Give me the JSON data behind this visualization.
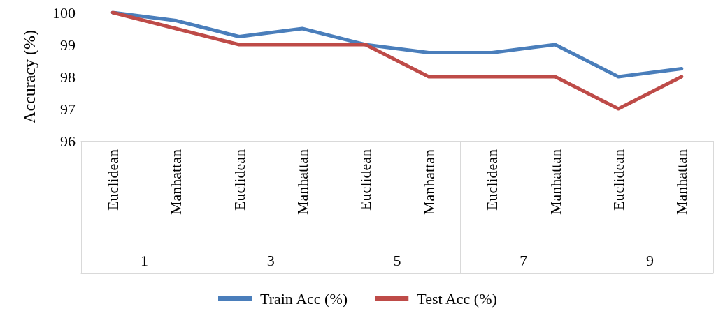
{
  "chart_data": {
    "type": "line",
    "ylabel": "Accuracy (%)",
    "categories": [
      "Euclidean",
      "Manhattan",
      "Euclidean",
      "Manhattan",
      "Euclidean",
      "Manhattan",
      "Euclidean",
      "Manhattan",
      "Euclidean",
      "Manhattan"
    ],
    "annotations": [
      "1",
      "3",
      "5",
      "7",
      "9"
    ],
    "series": [
      {
        "name": "Train Acc (%)",
        "color": "#4a7ebb",
        "values": [
          100,
          99.75,
          99.25,
          99.5,
          99,
          98.75,
          98.75,
          99,
          98,
          98.25
        ]
      },
      {
        "name": "Test Acc (%)",
        "color": "#be4b48",
        "values": [
          100,
          99.5,
          99,
          99,
          99,
          98,
          98,
          98,
          97,
          98
        ]
      }
    ],
    "ylim": [
      96,
      100
    ],
    "yticks": [
      96,
      97,
      98,
      99,
      100
    ],
    "grid": "y",
    "legend": "bottom",
    "marker": "none",
    "line_style": "solid"
  }
}
